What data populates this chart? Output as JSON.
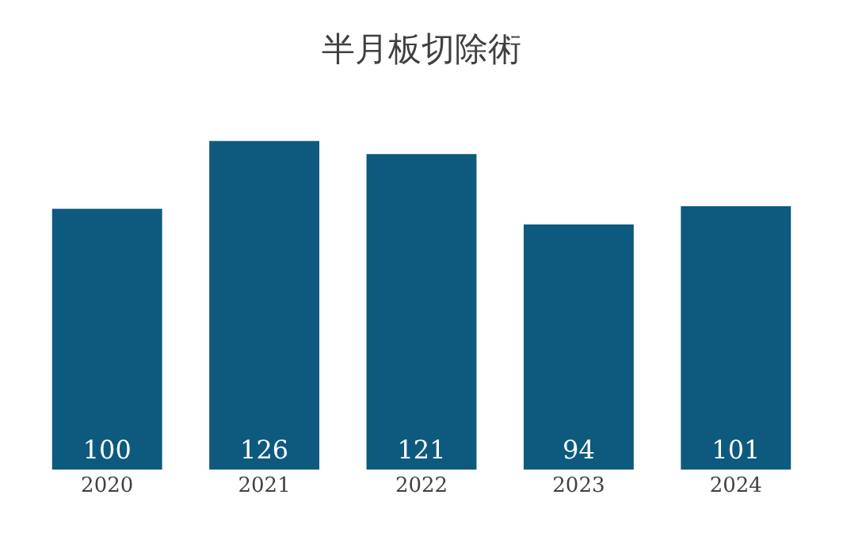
{
  "chart_data": {
    "type": "bar",
    "title": "半月板切除術",
    "categories": [
      "2020",
      "2021",
      "2022",
      "2023",
      "2024"
    ],
    "values": [
      100,
      126,
      121,
      94,
      101
    ],
    "color": "#0e5a7e",
    "data_labels": true,
    "grid": false,
    "legend": false
  }
}
